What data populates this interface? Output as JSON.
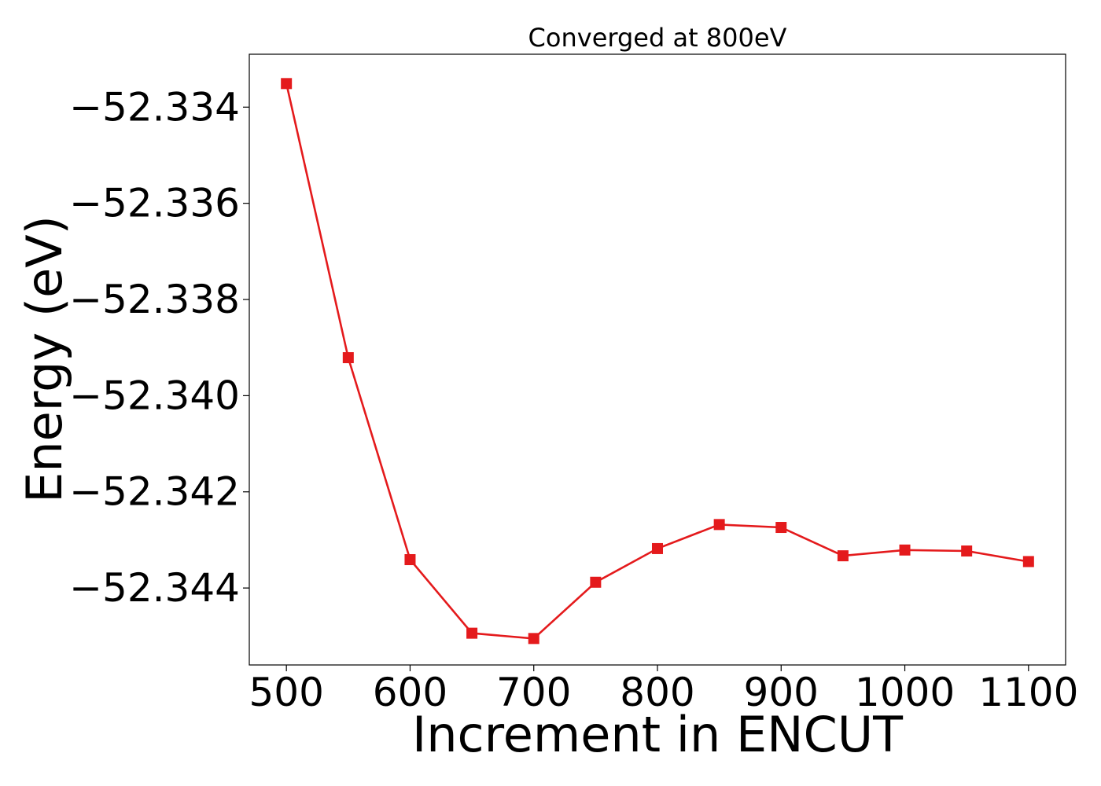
{
  "chart_data": {
    "type": "line",
    "title": "Converged at 800eV",
    "xlabel": "Increment in ENCUT",
    "ylabel": "Energy (eV)",
    "xlim": [
      470,
      1130
    ],
    "ylim": [
      -52.3456,
      -52.3329
    ],
    "xticks": [
      500,
      600,
      700,
      800,
      900,
      1000,
      1100
    ],
    "yticks": [
      -52.334,
      -52.336,
      -52.338,
      -52.34,
      -52.342,
      -52.344
    ],
    "ytick_labels": [
      "−52.334",
      "−52.336",
      "−52.338",
      "−52.340",
      "−52.342",
      "−52.344"
    ],
    "grid": false,
    "legend": "none",
    "series": [
      {
        "color": "#e41a1c",
        "marker": "square",
        "x": [
          500,
          550,
          600,
          650,
          700,
          750,
          800,
          850,
          900,
          950,
          1000,
          1050,
          1100
        ],
        "y": [
          -52.33351,
          -52.33921,
          -52.34341,
          -52.34494,
          -52.34505,
          -52.34388,
          -52.34318,
          -52.34268,
          -52.34274,
          -52.34333,
          -52.34321,
          -52.34323,
          -52.34345
        ]
      }
    ]
  }
}
